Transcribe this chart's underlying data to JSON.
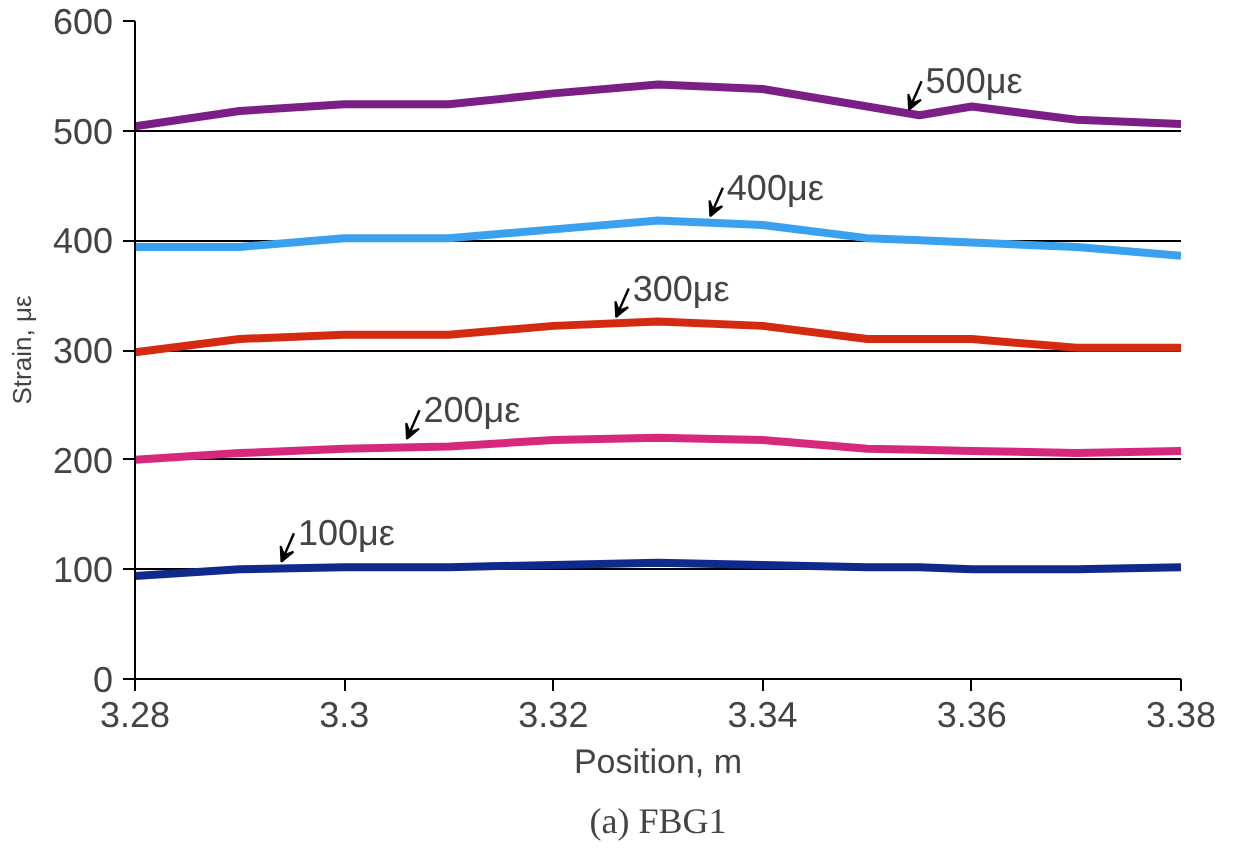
{
  "chart_data": {
    "type": "line",
    "xlabel": "Position, m",
    "ylabel": "Strain, με",
    "x": [
      3.28,
      3.29,
      3.3,
      3.31,
      3.32,
      3.33,
      3.34,
      3.35,
      3.355,
      3.36,
      3.37,
      3.38
    ],
    "series": [
      {
        "color": "#7b1f86",
        "values": [
          504,
          518,
          524,
          524,
          534,
          542,
          538,
          522,
          514,
          522,
          510,
          506
        ]
      },
      {
        "color": "#3aa0f0",
        "values": [
          394,
          394,
          402,
          402,
          410,
          418,
          414,
          402,
          400,
          398,
          394,
          386
        ]
      },
      {
        "color": "#d42a10",
        "values": [
          298,
          310,
          314,
          314,
          322,
          326,
          322,
          310,
          310,
          310,
          302,
          302
        ]
      },
      {
        "color": "#d6287c",
        "values": [
          200,
          206,
          210,
          212,
          218,
          220,
          218,
          210,
          209,
          208,
          206,
          208
        ]
      },
      {
        "color": "#102a8c",
        "values": [
          94,
          100,
          102,
          102,
          104,
          106,
          104,
          102,
          102,
          100,
          100,
          102
        ]
      }
    ],
    "xlim": [
      3.28,
      3.38
    ],
    "xticks": [
      3.28,
      3.3,
      3.32,
      3.34,
      3.36,
      3.38
    ],
    "ylim": [
      0,
      600
    ],
    "yticks": [
      0,
      100,
      200,
      300,
      400,
      500,
      600
    ],
    "grid": "y",
    "line_style": "solid",
    "annotations": [
      {
        "text": "500με",
        "x": 3.354,
        "y": 515
      },
      {
        "text": "400με",
        "x": 3.335,
        "y": 418
      },
      {
        "text": "300με",
        "x": 3.326,
        "y": 326
      },
      {
        "text": "200με",
        "x": 3.306,
        "y": 215
      },
      {
        "text": "100με",
        "x": 3.294,
        "y": 103
      },
      "(a) FBG1"
    ]
  }
}
